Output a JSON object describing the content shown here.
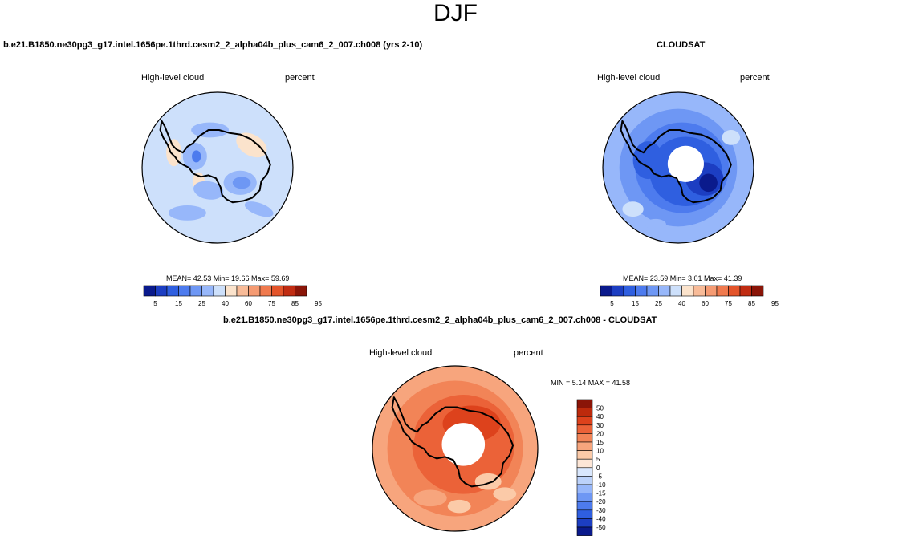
{
  "page": {
    "season": "DJF"
  },
  "colors": {
    "abs_levels": [
      "#0a1a8c",
      "#1c3ec2",
      "#2f5fe0",
      "#4d7bee",
      "#6e97f4",
      "#97b7fa",
      "#cde0fb",
      "#fbe3cc",
      "#f8bb98",
      "#f59b73",
      "#f07a4e",
      "#e3542a",
      "#c02c12",
      "#8a1508"
    ],
    "diff_levels": [
      "#0a1a8c",
      "#1c3ec2",
      "#2f5fe0",
      "#4d7bee",
      "#6e97f4",
      "#97b7fa",
      "#bcd2fa",
      "#d9e7fd",
      "#fde6d6",
      "#fbcaa8",
      "#f7a57d",
      "#f28457",
      "#eb6238",
      "#dd421c",
      "#bd2a0c",
      "#8a1508"
    ]
  },
  "chart_data": [
    {
      "type": "heatmap",
      "panel": "model",
      "title": "b.e21.B1850.ne30pg3_g17.intel.1656pe.1thrd.cesm2_2_alpha04b_plus_cam6_2_007.ch008 (yrs 2-10)",
      "left_label": "High-level cloud",
      "right_label": "percent",
      "stats_text": "MEAN=  42.53  Min=  19.66  Max=  59.69",
      "stats": {
        "mean": 42.53,
        "min": 19.66,
        "max": 59.69
      },
      "colorbar_ticks": [
        "5",
        "15",
        "25",
        "40",
        "60",
        "75",
        "85",
        "95"
      ],
      "levels": [
        5,
        10,
        15,
        20,
        25,
        30,
        40,
        50,
        60,
        70,
        75,
        80,
        85,
        90,
        95
      ],
      "region": "Antarctic polar stereographic"
    },
    {
      "type": "heatmap",
      "panel": "obs",
      "title": "CLOUDSAT",
      "left_label": "High-level cloud",
      "right_label": "percent",
      "stats_text": "MEAN=  23.59  Min=   3.01  Max=  41.39",
      "stats": {
        "mean": 23.59,
        "min": 3.01,
        "max": 41.39
      },
      "colorbar_ticks": [
        "5",
        "15",
        "25",
        "40",
        "60",
        "75",
        "85",
        "95"
      ],
      "levels": [
        5,
        10,
        15,
        20,
        25,
        30,
        40,
        50,
        60,
        70,
        75,
        80,
        85,
        90,
        95
      ],
      "region": "Antarctic polar stereographic"
    },
    {
      "type": "heatmap",
      "panel": "difference",
      "title": "b.e21.B1850.ne30pg3_g17.intel.1656pe.1thrd.cesm2_2_alpha04b_plus_cam6_2_007.ch008 - CLOUDSAT",
      "left_label": "High-level cloud",
      "right_label": "percent",
      "stats_text": "MIN =  5.14 MAX =  41.58",
      "stats": {
        "min": 5.14,
        "max": 41.58
      },
      "colorbar_ticks": [
        "50",
        "40",
        "30",
        "20",
        "15",
        "10",
        "5",
        "0",
        "-5",
        "-10",
        "-15",
        "-20",
        "-30",
        "-40",
        "-50"
      ],
      "region": "Antarctic polar stereographic"
    }
  ]
}
